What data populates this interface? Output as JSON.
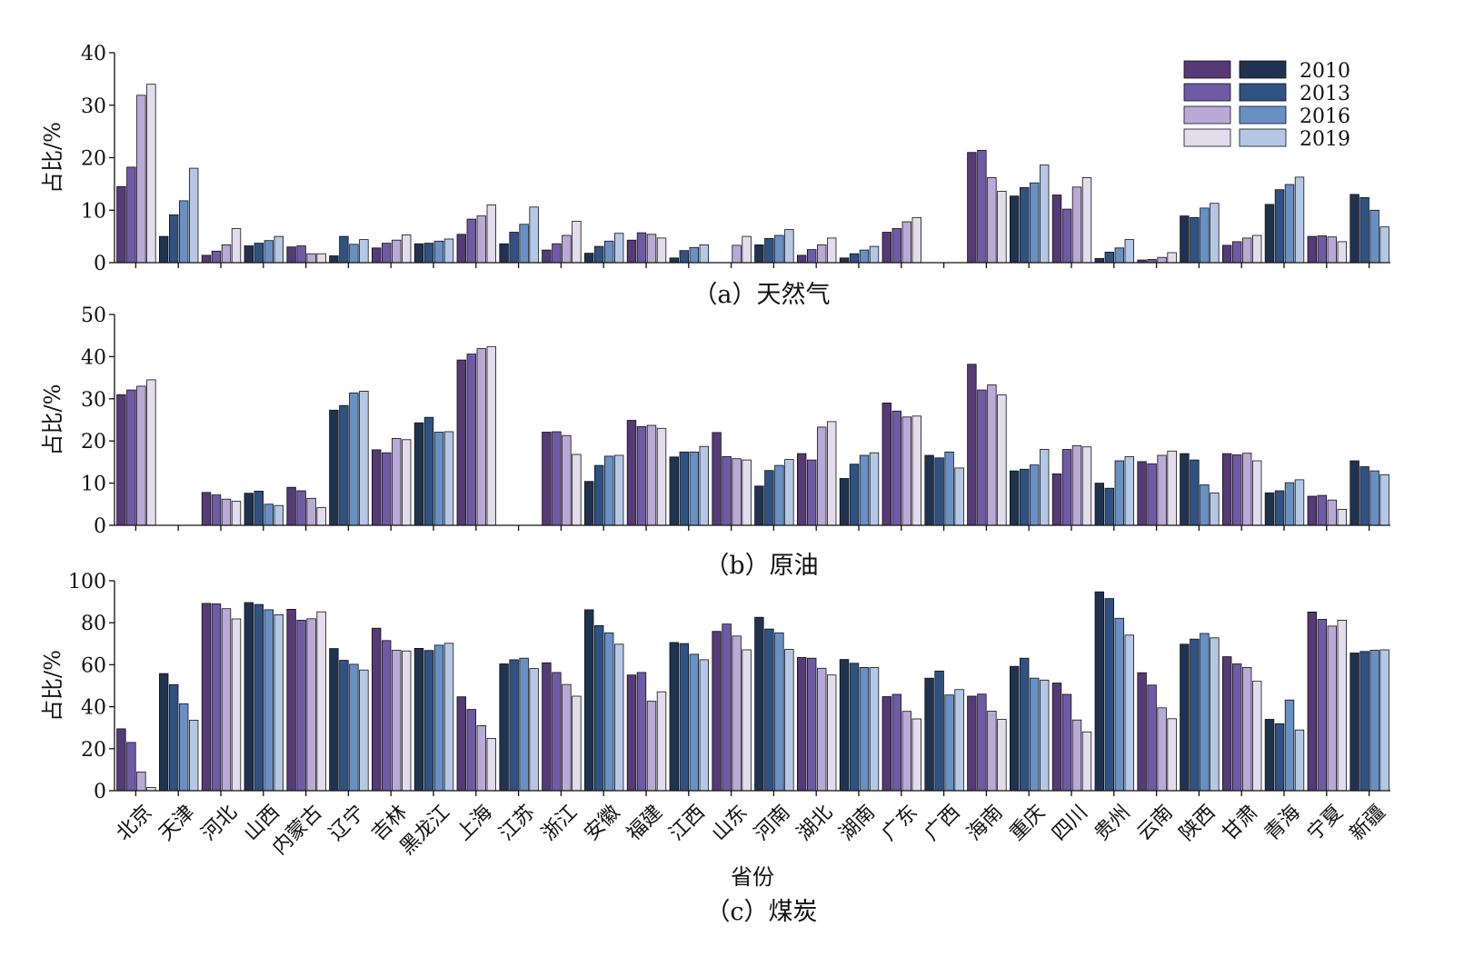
{
  "palettes": {
    "purple": [
      "#553a76",
      "#6f5aa6",
      "#b9a9d6",
      "#e3dced"
    ],
    "blue": [
      "#1f3350",
      "#2f5283",
      "#6890c5",
      "#b4c8e6"
    ]
  },
  "chart_data": [
    {
      "type": "bar",
      "caption": "（a）天然气",
      "ylabel": "占比/%",
      "ylim": [
        0,
        40
      ],
      "yticks": [
        0,
        10,
        20,
        30,
        40
      ],
      "xlabel": "",
      "legend": {
        "position": "top-right",
        "entries": [
          "2010",
          "2013",
          "2016",
          "2019"
        ]
      },
      "categories": [
        "北京",
        "天津",
        "河北",
        "山西",
        "内蒙古",
        "辽宁",
        "吉林",
        "黑龙江",
        "上海",
        "江苏",
        "浙江",
        "安徽",
        "福建",
        "江西",
        "山东",
        "河南",
        "湖北",
        "湖南",
        "广东",
        "广西",
        "海南",
        "重庆",
        "四川",
        "贵州",
        "云南",
        "陕西",
        "甘肃",
        "青海",
        "宁夏",
        "新疆"
      ],
      "palette_by_category": [
        "purple",
        "blue",
        "purple",
        "blue",
        "purple",
        "blue",
        "purple",
        "blue",
        "purple",
        "blue",
        "purple",
        "blue",
        "purple",
        "blue",
        "purple",
        "blue",
        "purple",
        "blue",
        "purple",
        "blue",
        "purple",
        "blue",
        "purple",
        "blue",
        "purple",
        "blue",
        "purple",
        "blue",
        "purple",
        "blue"
      ],
      "series": [
        {
          "name": "2010",
          "values": [
            14.5,
            5.0,
            1.4,
            3.2,
            3.0,
            1.3,
            2.8,
            3.6,
            5.4,
            3.6,
            2.4,
            1.8,
            4.3,
            0.9,
            0,
            3.4,
            1.4,
            0.9,
            5.8,
            0,
            21.0,
            12.7,
            12.9,
            0.8,
            0.5,
            8.9,
            3.3,
            11.1,
            5.0,
            13.0
          ]
        },
        {
          "name": "2013",
          "values": [
            18.2,
            9.1,
            2.2,
            3.7,
            3.2,
            5.0,
            3.7,
            3.7,
            8.3,
            5.8,
            3.6,
            3.1,
            5.7,
            2.3,
            0,
            4.6,
            2.5,
            1.7,
            6.5,
            0,
            21.4,
            14.3,
            10.2,
            2.0,
            0.6,
            8.6,
            4.0,
            13.9,
            5.1,
            12.4
          ]
        },
        {
          "name": "2016",
          "values": [
            31.9,
            11.8,
            3.4,
            4.2,
            1.7,
            3.5,
            4.3,
            4.1,
            8.9,
            7.3,
            5.2,
            4.1,
            5.4,
            2.9,
            3.3,
            5.2,
            3.4,
            2.4,
            7.8,
            0,
            16.2,
            15.2,
            14.4,
            2.8,
            1.0,
            10.4,
            4.7,
            14.9,
            4.9,
            10.0
          ]
        },
        {
          "name": "2019",
          "values": [
            34.0,
            18.0,
            6.5,
            5.0,
            1.7,
            4.4,
            5.3,
            4.5,
            11.0,
            10.6,
            7.9,
            5.6,
            4.7,
            3.4,
            5.0,
            6.3,
            4.7,
            3.1,
            8.6,
            0,
            13.6,
            18.6,
            16.2,
            4.4,
            1.9,
            11.3,
            5.2,
            16.3,
            4.0,
            6.8
          ]
        }
      ]
    },
    {
      "type": "bar",
      "caption": "（b）原油",
      "ylabel": "占比/%",
      "ylim": [
        0,
        50
      ],
      "yticks": [
        0,
        10,
        20,
        30,
        40,
        50
      ],
      "xlabel": "",
      "categories": [
        "北京",
        "天津",
        "河北",
        "山西",
        "内蒙古",
        "辽宁",
        "吉林",
        "黑龙江",
        "上海",
        "江苏",
        "浙江",
        "安徽",
        "福建",
        "江西",
        "山东",
        "河南",
        "湖北",
        "湖南",
        "广东",
        "广西",
        "海南",
        "重庆",
        "四川",
        "贵州",
        "云南",
        "陕西",
        "甘肃",
        "青海",
        "宁夏",
        "新疆"
      ],
      "palette_by_category": [
        "purple",
        "blue",
        "purple",
        "blue",
        "purple",
        "blue",
        "purple",
        "blue",
        "purple",
        "blue",
        "purple",
        "blue",
        "purple",
        "blue",
        "purple",
        "blue",
        "purple",
        "blue",
        "purple",
        "blue",
        "purple",
        "blue",
        "purple",
        "blue",
        "purple",
        "blue",
        "purple",
        "blue",
        "purple",
        "blue"
      ],
      "series": [
        {
          "name": "2010",
          "values": [
            31.0,
            0,
            7.8,
            7.6,
            9.0,
            27.3,
            17.9,
            24.3,
            39.2,
            0,
            22.1,
            10.4,
            24.9,
            16.2,
            22.0,
            9.3,
            17.0,
            11.1,
            29.0,
            16.6,
            38.2,
            12.9,
            12.2,
            10.0,
            15.1,
            17.0,
            17.0,
            7.7,
            6.9,
            15.3
          ]
        },
        {
          "name": "2013",
          "values": [
            32.1,
            0,
            7.2,
            8.1,
            8.2,
            28.4,
            17.2,
            25.6,
            40.6,
            0,
            22.2,
            14.2,
            23.4,
            17.4,
            16.3,
            13.0,
            15.5,
            14.5,
            27.1,
            16.0,
            32.1,
            13.3,
            18.0,
            8.8,
            14.6,
            15.5,
            16.7,
            8.2,
            7.1,
            13.9
          ]
        },
        {
          "name": "2016",
          "values": [
            33.0,
            0,
            6.2,
            5.0,
            6.4,
            31.4,
            20.6,
            22.1,
            41.9,
            0,
            21.3,
            16.4,
            23.7,
            17.4,
            15.8,
            14.2,
            23.3,
            16.6,
            25.7,
            17.4,
            33.3,
            14.3,
            18.9,
            15.3,
            16.6,
            9.6,
            17.1,
            10.1,
            6.0,
            12.9
          ]
        },
        {
          "name": "2019",
          "values": [
            34.5,
            0,
            5.7,
            4.7,
            4.2,
            31.8,
            20.3,
            22.2,
            42.4,
            0,
            16.8,
            16.6,
            23.0,
            18.7,
            15.5,
            15.6,
            24.6,
            17.2,
            25.9,
            13.6,
            30.9,
            18.0,
            18.6,
            16.3,
            17.6,
            7.7,
            15.3,
            10.8,
            3.8,
            12.0
          ]
        }
      ]
    },
    {
      "type": "bar",
      "caption": "（c）煤炭",
      "ylabel": "占比/%",
      "xlabel": "省份",
      "ylim": [
        0,
        100
      ],
      "yticks": [
        0,
        20,
        40,
        60,
        80,
        100
      ],
      "categories": [
        "北京",
        "天津",
        "河北",
        "山西",
        "内蒙古",
        "辽宁",
        "吉林",
        "黑龙江",
        "上海",
        "江苏",
        "浙江",
        "安徽",
        "福建",
        "江西",
        "山东",
        "河南",
        "湖北",
        "湖南",
        "广东",
        "广西",
        "海南",
        "重庆",
        "四川",
        "贵州",
        "云南",
        "陕西",
        "甘肃",
        "青海",
        "宁夏",
        "新疆"
      ],
      "palette_by_category": [
        "purple",
        "blue",
        "purple",
        "blue",
        "purple",
        "blue",
        "purple",
        "blue",
        "purple",
        "blue",
        "purple",
        "blue",
        "purple",
        "blue",
        "purple",
        "blue",
        "purple",
        "blue",
        "purple",
        "blue",
        "purple",
        "blue",
        "purple",
        "blue",
        "purple",
        "blue",
        "purple",
        "blue",
        "purple",
        "blue"
      ],
      "series": [
        {
          "name": "2010",
          "values": [
            29.5,
            55.8,
            89.2,
            89.6,
            86.4,
            67.7,
            77.4,
            67.8,
            44.7,
            60.4,
            60.9,
            86.2,
            55.1,
            70.6,
            75.9,
            82.6,
            63.4,
            62.5,
            44.8,
            53.6,
            45.0,
            59.2,
            51.3,
            94.7,
            56.2,
            69.8,
            63.8,
            34.0,
            85.1,
            65.6
          ]
        },
        {
          "name": "2013",
          "values": [
            23.0,
            50.5,
            89.0,
            88.7,
            81.2,
            62.1,
            71.5,
            66.8,
            38.7,
            62.4,
            56.3,
            78.6,
            56.3,
            70.1,
            79.4,
            77.0,
            63.1,
            60.7,
            45.9,
            57.0,
            46.0,
            63.1,
            45.9,
            91.5,
            50.3,
            72.2,
            60.4,
            31.9,
            81.6,
            66.3
          ]
        },
        {
          "name": "2016",
          "values": [
            8.9,
            41.4,
            86.7,
            86.2,
            81.9,
            60.2,
            66.9,
            69.3,
            31.0,
            63.1,
            50.6,
            75.2,
            42.6,
            65.0,
            73.7,
            75.2,
            58.3,
            58.7,
            37.8,
            45.6,
            37.9,
            53.6,
            33.7,
            82.1,
            39.5,
            74.9,
            58.7,
            43.2,
            78.4,
            66.9
          ]
        },
        {
          "name": "2019",
          "values": [
            1.5,
            33.6,
            81.8,
            83.8,
            85.2,
            57.5,
            66.6,
            70.2,
            24.9,
            58.2,
            45.0,
            69.8,
            47.1,
            62.4,
            67.1,
            67.3,
            55.1,
            58.6,
            34.2,
            48.2,
            34.0,
            52.7,
            28.0,
            74.1,
            34.3,
            72.8,
            52.1,
            28.9,
            81.2,
            67.1
          ]
        }
      ]
    }
  ]
}
